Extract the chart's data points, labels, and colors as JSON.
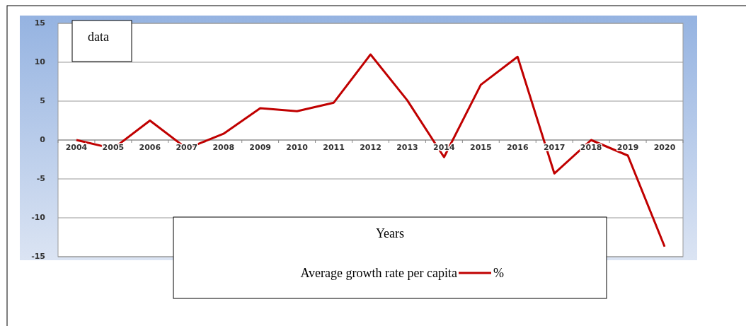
{
  "chart_data": {
    "type": "line",
    "ylabel": "data",
    "xlabel": "Years",
    "annotations": [
      "%"
    ],
    "categories": [
      "2004",
      "2005",
      "2006",
      "2007",
      "2008",
      "2009",
      "2010",
      "2011",
      "2012",
      "2013",
      "2014",
      "2015",
      "2016",
      "2017",
      "2018",
      "2019",
      "2020"
    ],
    "series": [
      {
        "name": "Average growth rate per capita",
        "color": "#c00000",
        "values": [
          0,
          -1.1,
          2.5,
          -1.1,
          0.8,
          4.1,
          3.7,
          4.8,
          11,
          5.1,
          -2.2,
          7.1,
          10.7,
          -4.3,
          0,
          -2,
          -13.7
        ]
      }
    ],
    "ylim": [
      -15,
      15
    ],
    "yticks": [
      -15,
      -10,
      -5,
      0,
      5,
      10,
      15
    ],
    "grid": "y",
    "legend": "bottom",
    "marker": "none",
    "line_style": "solid"
  }
}
